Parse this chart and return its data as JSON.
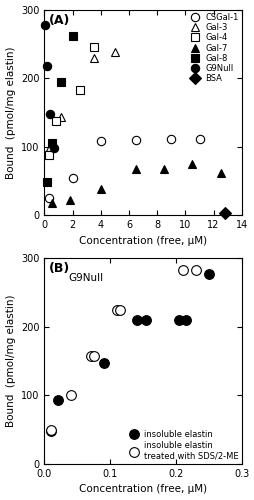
{
  "panel_A": {
    "title_label": "(A)",
    "xlim": [
      0,
      14
    ],
    "ylim": [
      0,
      300
    ],
    "xticks": [
      0,
      2,
      4,
      6,
      8,
      10,
      12,
      14
    ],
    "yticks": [
      0,
      100,
      200,
      300
    ],
    "xlabel": "Concentration (free, μM)",
    "ylabel": "Bound  (pmol/mg elastin)",
    "CSGal1": {
      "x": [
        0.3,
        2.0,
        4.0,
        6.5,
        9.0,
        11.0
      ],
      "y": [
        25,
        55,
        108,
        110,
        112,
        112
      ]
    },
    "Gal3": {
      "x": [
        0.4,
        1.2,
        3.5,
        5.0
      ],
      "y": [
        100,
        143,
        230,
        238
      ]
    },
    "Gal4": {
      "x": [
        0.3,
        0.8,
        2.5,
        3.5
      ],
      "y": [
        88,
        138,
        183,
        245
      ]
    },
    "Gal7": {
      "x": [
        0.5,
        1.8,
        4.0,
        6.5,
        8.5,
        10.5,
        12.5
      ],
      "y": [
        18,
        22,
        38,
        68,
        68,
        75,
        62
      ]
    },
    "Gal8": {
      "x": [
        0.2,
        0.5,
        1.2,
        2.0
      ],
      "y": [
        48,
        105,
        195,
        262
      ]
    },
    "G9Null": {
      "x": [
        0.05,
        0.2,
        0.4,
        0.7
      ],
      "y": [
        278,
        218,
        148,
        98
      ]
    },
    "BSA": {
      "x": [
        12.8
      ],
      "y": [
        3
      ]
    }
  },
  "panel_B": {
    "title_label": "(B)",
    "annotation": "G9Null",
    "xlim": [
      0,
      0.3
    ],
    "ylim": [
      0,
      300
    ],
    "xticks": [
      0.0,
      0.1,
      0.2,
      0.3
    ],
    "yticks": [
      0,
      100,
      200,
      300
    ],
    "xlabel": "Concentration (free, μM)",
    "ylabel": "Bound  (pmol/mg elastin)",
    "insoluble": {
      "x": [
        0.01,
        0.02,
        0.09,
        0.14,
        0.155,
        0.205,
        0.215,
        0.25
      ],
      "y": [
        48,
        93,
        147,
        210,
        210,
        210,
        210,
        277
      ]
    },
    "treated": {
      "x": [
        0.01,
        0.04,
        0.07,
        0.075,
        0.11,
        0.115,
        0.21,
        0.23
      ],
      "y": [
        50,
        100,
        158,
        158,
        225,
        225,
        283,
        283
      ]
    }
  },
  "figure_bg": "#ffffff",
  "axes_bg": "#ffffff",
  "marker_size_A": 6,
  "marker_size_B": 7,
  "mew": 0.8,
  "tick_fontsize": 7,
  "label_fontsize": 7.5,
  "legend_fontsize": 6.0
}
